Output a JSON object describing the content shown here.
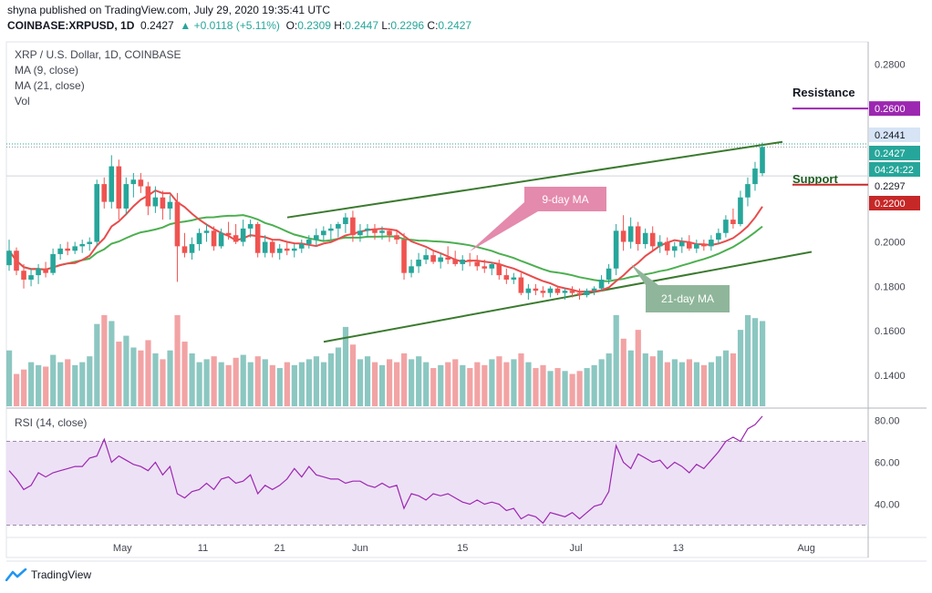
{
  "header": {
    "publisher": "shyna published on TradingView.com, July 29, 2020 19:35:41 UTC",
    "symbol": "COINBASE:XRPUSD, 1D",
    "last": "0.2427",
    "change": "▲ +0.0118 (+5.11%)",
    "o_label": "O:",
    "o": "0.2309",
    "h_label": "H:",
    "h": "0.2447",
    "l_label": "L:",
    "l": "0.2296",
    "c_label": "C:",
    "c": "0.2427"
  },
  "legend": {
    "title": "XRP / U.S. Dollar, 1D, COINBASE",
    "ma9": "MA (9, close)",
    "ma21": "MA (21, close)",
    "vol": "Vol"
  },
  "rsi_label": "RSI (14, close)",
  "footer": {
    "brand": "TradingView"
  },
  "colors": {
    "up": "#26a69a",
    "down": "#ef5350",
    "up_vol": "#8cc7c1",
    "down_vol": "#f2a3a4",
    "ma9": "#e84c4c",
    "ma21": "#4caf50",
    "channel": "#3b7a2f",
    "rsi": "#9c27b0",
    "resistance": "#9c27b0",
    "support": "#c62828"
  },
  "chart_data": {
    "type": "candlestick",
    "title": "XRP / U.S. Dollar, 1D, COINBASE",
    "x_ticks": [
      "May",
      "11",
      "21",
      "Jun",
      "15",
      "Jul",
      "13",
      "Aug"
    ],
    "y_ticks": [
      "0.2800",
      "0.2600",
      "0.2441",
      "0.2427",
      "0.2297",
      "0.2200",
      "0.2000",
      "0.1800",
      "0.1600",
      "0.1400"
    ],
    "y_ticks_plain": [
      "0.2800",
      "0.2000",
      "0.1800",
      "0.1600",
      "0.1400"
    ],
    "rsi_ticks": [
      "80.00",
      "60.00",
      "40.00"
    ],
    "price_tags": {
      "high": "0.2441",
      "last": "0.2427",
      "countdown": "04:24:22",
      "low": "0.2297",
      "support": "0.2200",
      "resistance": "0.2600"
    },
    "annotations": {
      "resistance": "Resistance",
      "support": "Support",
      "ma9_callout": "9-day MA",
      "ma21_callout": "21-day MA"
    },
    "ylim": [
      0.126,
      0.29
    ],
    "rsi_ylim": [
      25,
      85
    ],
    "candles": [
      [
        0.1895,
        0.201,
        0.187,
        0.196
      ],
      [
        0.196,
        0.1975,
        0.185,
        0.187
      ],
      [
        0.187,
        0.19,
        0.179,
        0.183
      ],
      [
        0.183,
        0.188,
        0.18,
        0.185
      ],
      [
        0.185,
        0.19,
        0.181,
        0.188
      ],
      [
        0.188,
        0.191,
        0.184,
        0.186
      ],
      [
        0.186,
        0.197,
        0.185,
        0.1945
      ],
      [
        0.1945,
        0.199,
        0.192,
        0.197
      ],
      [
        0.197,
        0.2,
        0.194,
        0.196
      ],
      [
        0.196,
        0.2,
        0.1945,
        0.198
      ],
      [
        0.198,
        0.201,
        0.195,
        0.199
      ],
      [
        0.199,
        0.202,
        0.196,
        0.2
      ],
      [
        0.2,
        0.228,
        0.198,
        0.226
      ],
      [
        0.226,
        0.229,
        0.215,
        0.218
      ],
      [
        0.218,
        0.239,
        0.215,
        0.234
      ],
      [
        0.234,
        0.237,
        0.21,
        0.215
      ],
      [
        0.215,
        0.229,
        0.212,
        0.226
      ],
      [
        0.226,
        0.231,
        0.22,
        0.228
      ],
      [
        0.228,
        0.231,
        0.222,
        0.225
      ],
      [
        0.225,
        0.227,
        0.212,
        0.216
      ],
      [
        0.216,
        0.225,
        0.213,
        0.22
      ],
      [
        0.22,
        0.223,
        0.21,
        0.215
      ],
      [
        0.215,
        0.221,
        0.21,
        0.218
      ],
      [
        0.218,
        0.222,
        0.182,
        0.198
      ],
      [
        0.198,
        0.204,
        0.193,
        0.195
      ],
      [
        0.195,
        0.202,
        0.192,
        0.199
      ],
      [
        0.199,
        0.206,
        0.196,
        0.204
      ],
      [
        0.204,
        0.208,
        0.2,
        0.205
      ],
      [
        0.205,
        0.207,
        0.196,
        0.198
      ],
      [
        0.198,
        0.206,
        0.197,
        0.204
      ],
      [
        0.204,
        0.209,
        0.201,
        0.203
      ],
      [
        0.203,
        0.208,
        0.199,
        0.2
      ],
      [
        0.2,
        0.21,
        0.198,
        0.206
      ],
      [
        0.206,
        0.21,
        0.202,
        0.208
      ],
      [
        0.208,
        0.209,
        0.193,
        0.195
      ],
      [
        0.195,
        0.203,
        0.193,
        0.2
      ],
      [
        0.2,
        0.201,
        0.193,
        0.195
      ],
      [
        0.195,
        0.199,
        0.192,
        0.197
      ],
      [
        0.197,
        0.2,
        0.194,
        0.196
      ],
      [
        0.196,
        0.199,
        0.193,
        0.197
      ],
      [
        0.197,
        0.201,
        0.195,
        0.199
      ],
      [
        0.199,
        0.203,
        0.197,
        0.201
      ],
      [
        0.201,
        0.206,
        0.198,
        0.203
      ],
      [
        0.203,
        0.207,
        0.2,
        0.205
      ],
      [
        0.205,
        0.208,
        0.201,
        0.206
      ],
      [
        0.206,
        0.209,
        0.202,
        0.208
      ],
      [
        0.208,
        0.213,
        0.204,
        0.211
      ],
      [
        0.211,
        0.214,
        0.2,
        0.203
      ],
      [
        0.203,
        0.208,
        0.2,
        0.205
      ],
      [
        0.205,
        0.208,
        0.202,
        0.206
      ],
      [
        0.206,
        0.208,
        0.201,
        0.204
      ],
      [
        0.204,
        0.207,
        0.201,
        0.205
      ],
      [
        0.205,
        0.206,
        0.2,
        0.203
      ],
      [
        0.203,
        0.205,
        0.199,
        0.201
      ],
      [
        0.201,
        0.204,
        0.183,
        0.186
      ],
      [
        0.186,
        0.192,
        0.184,
        0.189
      ],
      [
        0.189,
        0.195,
        0.186,
        0.192
      ],
      [
        0.192,
        0.197,
        0.19,
        0.194
      ],
      [
        0.194,
        0.196,
        0.19,
        0.191
      ],
      [
        0.191,
        0.195,
        0.188,
        0.193
      ],
      [
        0.193,
        0.198,
        0.19,
        0.192
      ],
      [
        0.192,
        0.196,
        0.189,
        0.19
      ],
      [
        0.19,
        0.194,
        0.187,
        0.192
      ],
      [
        0.192,
        0.195,
        0.189,
        0.191
      ],
      [
        0.191,
        0.194,
        0.187,
        0.189
      ],
      [
        0.189,
        0.192,
        0.186,
        0.188
      ],
      [
        0.188,
        0.191,
        0.185,
        0.19
      ],
      [
        0.19,
        0.192,
        0.183,
        0.185
      ],
      [
        0.185,
        0.188,
        0.181,
        0.183
      ],
      [
        0.183,
        0.186,
        0.181,
        0.184
      ],
      [
        0.184,
        0.186,
        0.176,
        0.177
      ],
      [
        0.177,
        0.181,
        0.174,
        0.179
      ],
      [
        0.179,
        0.181,
        0.176,
        0.178
      ],
      [
        0.178,
        0.18,
        0.175,
        0.177
      ],
      [
        0.177,
        0.18,
        0.175,
        0.179
      ],
      [
        0.179,
        0.18,
        0.176,
        0.177
      ],
      [
        0.177,
        0.179,
        0.174,
        0.178
      ],
      [
        0.178,
        0.18,
        0.175,
        0.177
      ],
      [
        0.177,
        0.179,
        0.174,
        0.176
      ],
      [
        0.176,
        0.179,
        0.175,
        0.178
      ],
      [
        0.178,
        0.18,
        0.176,
        0.179
      ],
      [
        0.179,
        0.185,
        0.178,
        0.183
      ],
      [
        0.183,
        0.19,
        0.181,
        0.188
      ],
      [
        0.188,
        0.208,
        0.185,
        0.205
      ],
      [
        0.205,
        0.212,
        0.196,
        0.2
      ],
      [
        0.2,
        0.211,
        0.197,
        0.207
      ],
      [
        0.207,
        0.209,
        0.196,
        0.199
      ],
      [
        0.199,
        0.206,
        0.197,
        0.204
      ],
      [
        0.204,
        0.207,
        0.196,
        0.198
      ],
      [
        0.198,
        0.203,
        0.195,
        0.2
      ],
      [
        0.2,
        0.202,
        0.194,
        0.196
      ],
      [
        0.196,
        0.2,
        0.193,
        0.198
      ],
      [
        0.198,
        0.202,
        0.195,
        0.2
      ],
      [
        0.2,
        0.203,
        0.196,
        0.197
      ],
      [
        0.197,
        0.201,
        0.195,
        0.199
      ],
      [
        0.199,
        0.201,
        0.196,
        0.198
      ],
      [
        0.198,
        0.203,
        0.196,
        0.201
      ],
      [
        0.201,
        0.206,
        0.199,
        0.204
      ],
      [
        0.204,
        0.212,
        0.202,
        0.21
      ],
      [
        0.21,
        0.215,
        0.206,
        0.208
      ],
      [
        0.208,
        0.223,
        0.207,
        0.22
      ],
      [
        0.22,
        0.229,
        0.216,
        0.226
      ],
      [
        0.226,
        0.236,
        0.223,
        0.233
      ],
      [
        0.2309,
        0.2447,
        0.2296,
        0.2427
      ]
    ],
    "volume": [
      38,
      22,
      25,
      30,
      28,
      27,
      35,
      30,
      32,
      28,
      30,
      34,
      56,
      62,
      58,
      44,
      48,
      40,
      38,
      45,
      36,
      32,
      38,
      62,
      44,
      36,
      30,
      32,
      34,
      30,
      28,
      33,
      35,
      30,
      34,
      32,
      28,
      26,
      30,
      28,
      30,
      32,
      34,
      30,
      36,
      40,
      54,
      42,
      32,
      34,
      30,
      28,
      32,
      30,
      36,
      32,
      34,
      30,
      26,
      28,
      30,
      32,
      28,
      26,
      30,
      28,
      32,
      34,
      30,
      32,
      36,
      30,
      26,
      28,
      24,
      26,
      24,
      22,
      24,
      26,
      28,
      32,
      36,
      62,
      46,
      38,
      52,
      36,
      34,
      38,
      30,
      32,
      30,
      32,
      30,
      28,
      30,
      34,
      38,
      36,
      52,
      62,
      60,
      58
    ],
    "rsi": [
      56,
      52,
      47,
      49,
      55,
      53,
      55,
      56,
      57,
      58,
      58,
      62,
      63,
      71,
      60,
      63,
      61,
      59,
      58,
      56,
      60,
      54,
      58,
      45,
      43,
      46,
      47,
      50,
      47,
      52,
      53,
      50,
      51,
      54,
      45,
      49,
      47,
      49,
      52,
      57,
      53,
      58,
      54,
      53,
      52,
      52,
      50,
      51,
      51,
      49,
      48,
      50,
      48,
      49,
      38,
      45,
      44,
      42,
      45,
      44,
      45,
      43,
      41,
      40,
      42,
      40,
      41,
      40,
      37,
      38,
      33,
      35,
      34,
      31,
      36,
      35,
      34,
      36,
      33,
      36,
      39,
      40,
      46,
      68,
      60,
      57,
      64,
      62,
      60,
      61,
      57,
      60,
      58,
      55,
      59,
      57,
      61,
      65,
      70,
      72,
      70,
      76,
      78,
      82
    ]
  }
}
